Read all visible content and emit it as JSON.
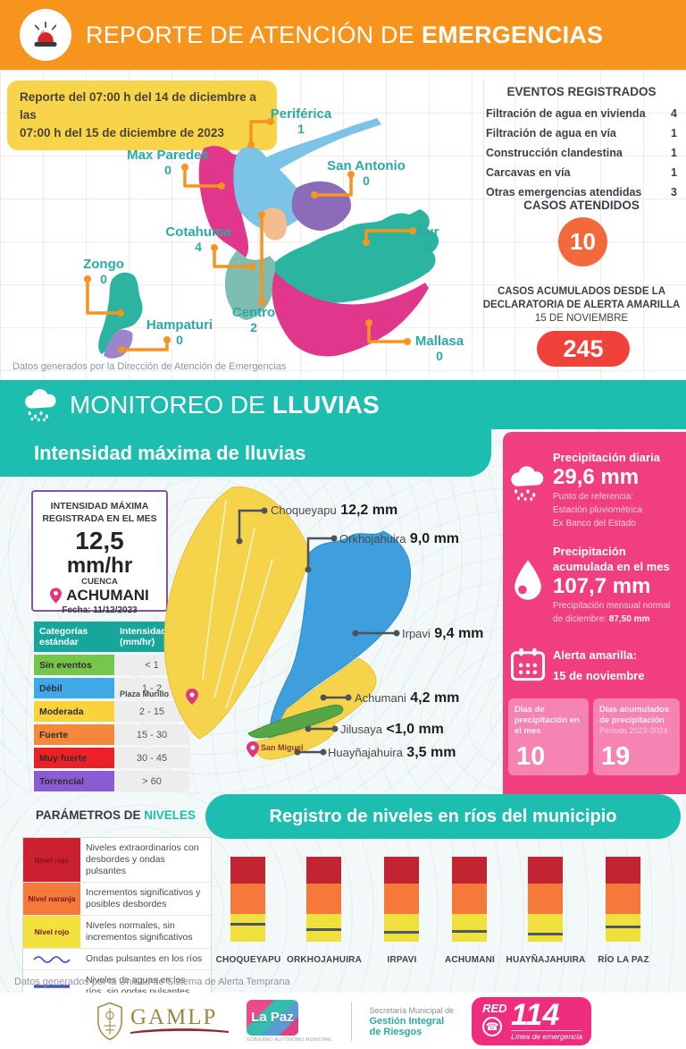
{
  "header": {
    "title": "REPORTE DE ATENCIÓN DE",
    "title_bold": "EMERGENCIAS"
  },
  "report_box": {
    "line1": "Reporte del 07:00 h del 14 de diciembre a las",
    "line2": "07:00 h del 15 de diciembre de 2023"
  },
  "districts": {
    "labels": [
      {
        "name": "Periférica",
        "value": "1"
      },
      {
        "name": "Max Paredes",
        "value": "0"
      },
      {
        "name": "San Antonio",
        "value": "0"
      },
      {
        "name": "Cotahuma",
        "value": "4"
      },
      {
        "name": "Sur",
        "value": "3"
      },
      {
        "name": "Zongo",
        "value": "0"
      },
      {
        "name": "Centro",
        "value": "2"
      },
      {
        "name": "Hampaturi",
        "value": "0"
      },
      {
        "name": "Mallasa",
        "value": "0"
      }
    ],
    "source": "Datos generados por la Dirección de Atención de Emergencias"
  },
  "events": {
    "title": "EVENTOS REGISTRADOS",
    "items": [
      {
        "label": "Filtración de agua en vivienda",
        "count": "4"
      },
      {
        "label": "Filtración de agua en vía",
        "count": "1"
      },
      {
        "label": "Construcción clandestina",
        "count": "1"
      },
      {
        "label": "Carcavas en vía",
        "count": "1"
      },
      {
        "label": "Otras emergencias atendidas",
        "count": "3"
      }
    ],
    "cases_title": "CASOS ATENDIDOS",
    "cases_value": "10",
    "accum_line1": "CASOS ACUMULADOS DESDE LA",
    "accum_line2": "DECLARATORIA DE ALERTA AMARILLA",
    "accum_line3": "15 DE NOVIEMBRE",
    "accum_value": "245"
  },
  "monitor": {
    "title": "MONITOREO DE",
    "title_bold": "LLUVIAS",
    "subtitle": "Intensidad máxima de lluvias"
  },
  "intensity": {
    "title1": "INTENSIDAD MÁXIMA",
    "title2": "REGISTRADA EN EL MES",
    "value": "12,5",
    "unit": "mm/hr",
    "cuenca_label": "CUENCA",
    "cuenca": "ACHUMANI",
    "fecha": "Fecha: 11/12/2023"
  },
  "categories": {
    "header_col1": "Categorías estándar",
    "header_col2": "Intensidad (mm/hr)",
    "rows": [
      {
        "name": "Sin eventos",
        "range": "< 1",
        "color": "#76C64C"
      },
      {
        "name": "Débil",
        "range": "1 - 2",
        "color": "#3FA9E8"
      },
      {
        "name": "Moderada",
        "range": "2 - 15",
        "color": "#F9D23C"
      },
      {
        "name": "Fuerte",
        "range": "15 - 30",
        "color": "#F6883B"
      },
      {
        "name": "Muy fuerte",
        "range": "30 - 45",
        "color": "#EB2127"
      },
      {
        "name": "Torrencial",
        "range": "> 60",
        "color": "#8A5BD3"
      }
    ]
  },
  "rain_map": {
    "basins": [
      {
        "name": "Choqueyapu",
        "value": "12,2 mm"
      },
      {
        "name": "Orkhojahuira",
        "value": "9,0 mm"
      },
      {
        "name": "Irpavi",
        "value": "9,4 mm"
      },
      {
        "name": "Achumani",
        "value": "4,2 mm"
      },
      {
        "name": "Jilusaya",
        "value": "<1,0 mm"
      },
      {
        "name": "Huayñajahuira",
        "value": "3,5 mm"
      }
    ],
    "places": [
      {
        "name": "Plaza Murillo"
      },
      {
        "name": "San Miguel"
      }
    ]
  },
  "precip": {
    "daily_title": "Precipitación diaria",
    "daily_value": "29,6 mm",
    "daily_note1": "Punto de referencia:",
    "daily_note2": "Estación pluviométrica",
    "daily_note3": "Ex Banco del Estado",
    "month_title1": "Precipitación",
    "month_title2": "acumulada en el mes",
    "month_value": "107,7 mm",
    "month_note1": "Precipitación mensual normal",
    "month_note2": "de diciembre: ",
    "month_note2_bold": "87,50 mm",
    "alert_title": "Alerta amarilla:",
    "alert_date": "15 de noviembre",
    "box1_title": "Días de precipitación en el mes",
    "box1_value": "10",
    "box2_title": "Días acumulados de precipitación",
    "box2_sub": "Periodo 2023-2024",
    "box2_value": "19"
  },
  "levels": {
    "param_title": "PARÁMETROS DE",
    "param_title_accent": "NIVELES",
    "registro_title": "Registro de niveles en ríos del municipio",
    "legend": [
      {
        "swatch": "Nivel rojo",
        "desc": "Niveles extraordinarios con desbordes y ondas pulsantes"
      },
      {
        "swatch": "Nivel naranja",
        "desc": "Incrementos significativos y posibles desbordes"
      },
      {
        "swatch": "Nivel rojo",
        "desc": "Niveles normales, sin incrementos significativos"
      },
      {
        "swatch": "",
        "desc": "Ondas pulsantes en los ríos"
      },
      {
        "swatch": "",
        "desc": "Niveles de aguas en los ríos, sin ondas pulsantes"
      }
    ],
    "source": "Datos generados por la Unidad de Sistema de Alerta Temprana"
  },
  "chart_data": {
    "type": "bar",
    "title": "Registro de niveles en ríos del municipio",
    "categories": [
      "CHOQUEYAPU",
      "ORKHOJAHUIRA",
      "IRPAVI",
      "ACHUMANI",
      "HUAYÑAJAHUIRA",
      "RÍO LA PAZ"
    ],
    "segments": [
      "nivel rojo (superior)",
      "nivel naranja (medio)",
      "nivel amarillo (inferior)"
    ],
    "segment_colors": {
      "red": "#C32431",
      "orange": "#F5793B",
      "yellow": "#EFE03E"
    },
    "level_line_pct_from_top": [
      78,
      84,
      87,
      86,
      89,
      81
    ],
    "note": "Cada barra apila los umbrales rojo/naranja/amarillo; la línea gris marca el nivel de agua actual de cada río"
  },
  "footer": {
    "gamlp": "GAMLP",
    "lapaz": "La Paz",
    "lapaz_caption": "GOBIERNO AUTÓNOMO MUNICIPAL",
    "secretaria1": "Secretaría Municipal de",
    "secretaria2": "Gestión Integral",
    "secretaria3": "de Riesgos",
    "red_word": "RED",
    "red_number": "114",
    "red_caption": "Línea de emergencia"
  }
}
